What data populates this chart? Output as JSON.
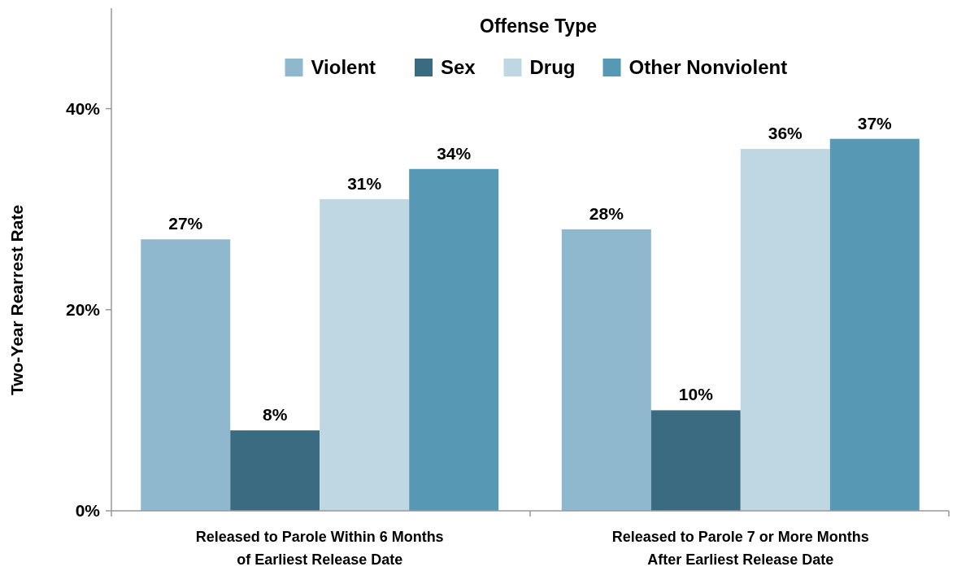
{
  "chart_data": {
    "type": "bar",
    "ylabel": "Two-Year Rearrest Rate",
    "legend_title": "Offense Type",
    "legend": "top",
    "categories": [
      "Released to Parole Within 6 Months\nof Earliest Release Date",
      "Released to Parole 7 or More Months\nAfter Earliest Release Date"
    ],
    "series": [
      {
        "name": "Violent",
        "color": "#8fb8cf",
        "values": [
          27,
          28
        ],
        "value_labels": [
          "27%",
          "28%"
        ]
      },
      {
        "name": "Sex",
        "color": "#3b6b80",
        "values": [
          8,
          10
        ],
        "value_labels": [
          "8%",
          "10%"
        ]
      },
      {
        "name": "Drug",
        "color": "#bfd7e3",
        "values": [
          31,
          36
        ],
        "value_labels": [
          "31%",
          "36%"
        ]
      },
      {
        "name": "Other Nonviolent",
        "color": "#5799b5",
        "values": [
          34,
          37
        ],
        "value_labels": [
          "34%",
          "37%"
        ]
      }
    ],
    "ylim": [
      0,
      50
    ],
    "yticks": [
      {
        "value": 0,
        "label": "0%"
      },
      {
        "value": 20,
        "label": "20%"
      },
      {
        "value": 40,
        "label": "40%"
      }
    ],
    "grid": false
  }
}
